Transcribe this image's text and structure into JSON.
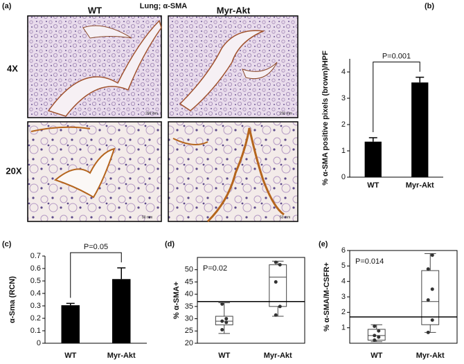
{
  "panel_a": {
    "label": "(a)",
    "title": "Lung; α-SMA",
    "columns": [
      "WT",
      "Myr-Akt"
    ],
    "rows": [
      "4X",
      "20X"
    ],
    "scale_bars": [
      "200 mm",
      "50 mm"
    ]
  },
  "chart_data": [
    {
      "type": "bar",
      "label": "(b)",
      "y_label": "% α-SMA positive pixels (brown)/HPF",
      "categories": [
        "WT",
        "Myr-Akt"
      ],
      "values": [
        1.35,
        3.6
      ],
      "errors": [
        0.15,
        0.2
      ],
      "color": "#000000",
      "ylim": [
        0,
        4.5
      ],
      "yticks": [
        0,
        1,
        2,
        3,
        4
      ],
      "annotation": "P=0.001"
    },
    {
      "type": "bar",
      "label": "(c)",
      "y_label": "α-Sma (RCN)",
      "categories": [
        "WT",
        "Myr-Akt"
      ],
      "values": [
        0.305,
        0.515
      ],
      "errors": [
        0.015,
        0.09
      ],
      "color": "#000000",
      "ylim": [
        0,
        0.7
      ],
      "yticks": [
        0,
        0.1,
        0.2,
        0.3,
        0.4,
        0.5,
        0.6,
        0.7
      ],
      "annotation": "P=0.05"
    },
    {
      "type": "box",
      "label": "(d)",
      "y_label": "% α-SMA+",
      "categories": [
        "WT",
        "Myr-Akt"
      ],
      "boxes": [
        {
          "min": 24,
          "q1": 27.5,
          "median": 29,
          "q3": 31,
          "max": 36.5,
          "points": [
            25.5,
            28.5,
            29,
            30,
            36
          ]
        },
        {
          "min": 31,
          "q1": 35,
          "median": 47,
          "q3": 52,
          "max": 53.5,
          "points": [
            31.5,
            35,
            45,
            52,
            53
          ]
        }
      ],
      "reference_line": 37,
      "ylim": [
        20,
        55
      ],
      "yticks": [
        20,
        25,
        30,
        35,
        40,
        45,
        50
      ],
      "annotation": "P=0.02"
    },
    {
      "type": "box",
      "label": "(e)",
      "y_label": "% α-SMA/M-CSFR+",
      "categories": [
        "WT",
        "Myr-Akt"
      ],
      "boxes": [
        {
          "min": 0.1,
          "q1": 0.2,
          "median": 0.5,
          "q3": 0.9,
          "max": 1.2,
          "points": [
            0.2,
            0.4,
            0.5,
            0.8,
            1.1
          ]
        },
        {
          "min": 0.7,
          "q1": 1.2,
          "median": 2.7,
          "q3": 4.7,
          "max": 5.8,
          "points": [
            0.7,
            1.5,
            2.8,
            3.5,
            4.8,
            5.7
          ]
        }
      ],
      "reference_line": 1.7,
      "ylim": [
        0,
        6
      ],
      "yticks": [
        1,
        2,
        3,
        4,
        5,
        6
      ],
      "annotation": "P=0.014"
    }
  ]
}
